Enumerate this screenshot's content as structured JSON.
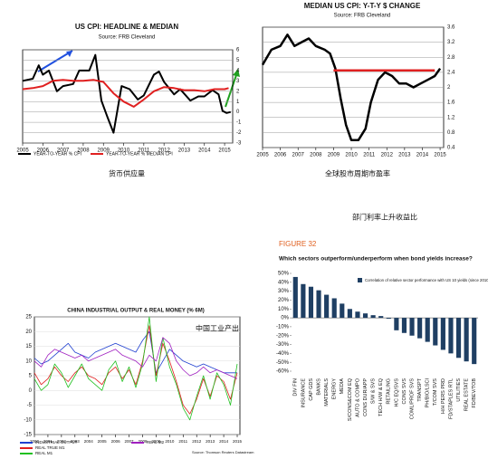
{
  "chart_data": [
    {
      "type": "line",
      "title": "US CPI: HEADLINE & MEDIAN",
      "source": "Source: FRB Cleveland",
      "caption": "货币供应量",
      "xlim": [
        2005,
        2015.4
      ],
      "xticks": [
        2005,
        2006,
        2007,
        2008,
        2009,
        2010,
        2011,
        2012,
        2013,
        2014,
        2015
      ],
      "ylim": [
        -3,
        6
      ],
      "yticks": [
        -3,
        -2,
        -1,
        0,
        1,
        2,
        3,
        4,
        5,
        6
      ],
      "grid": true,
      "series": [
        {
          "name": "YEAR-TO-YEAR % CPI",
          "color": "#000000",
          "x": [
            2005,
            2005.5,
            2005.8,
            2006.0,
            2006.3,
            2006.7,
            2007.0,
            2007.5,
            2007.8,
            2008.3,
            2008.6,
            2008.9,
            2009.2,
            2009.5,
            2009.9,
            2010.3,
            2010.7,
            2011.0,
            2011.5,
            2011.75,
            2012.0,
            2012.5,
            2012.8,
            2013.3,
            2013.7,
            2014.0,
            2014.4,
            2014.7,
            2014.9,
            2015.1,
            2015.3
          ],
          "values": [
            3,
            3.2,
            4.5,
            3.6,
            4.0,
            2.0,
            2.5,
            2.7,
            4.0,
            4.0,
            5.5,
            1.1,
            -0.5,
            -2.0,
            2.5,
            2.2,
            1.2,
            1.6,
            3.6,
            3.9,
            2.9,
            1.7,
            2.2,
            1.1,
            1.5,
            1.5,
            2.1,
            1.7,
            0.1,
            -0.1,
            0.0
          ]
        },
        {
          "name": "YEAR-TO-YEAR % MEDIAN CPI",
          "color": "#e02020",
          "x": [
            2005,
            2005.5,
            2006,
            2006.5,
            2007,
            2007.5,
            2008,
            2008.5,
            2009,
            2009.5,
            2010,
            2010.5,
            2011,
            2011.5,
            2012,
            2012.5,
            2013,
            2013.5,
            2014,
            2014.5,
            2015,
            2015.2
          ],
          "values": [
            2.2,
            2.3,
            2.5,
            3.0,
            3.1,
            3.0,
            3.0,
            3.1,
            2.9,
            1.8,
            1.0,
            0.5,
            1.2,
            2.0,
            2.4,
            2.3,
            2.1,
            2.1,
            2.0,
            2.2,
            2.2,
            2.3
          ]
        }
      ]
    },
    {
      "type": "line",
      "title": "MEDIAN US CPI: Y-T-Y $ CHANGE",
      "source": "Source: FRB Cleveland",
      "caption": "全球股市周期市盈率",
      "xlim": [
        2005,
        2015.2
      ],
      "xticks": [
        2005,
        2006,
        2007,
        2008,
        2009,
        2010,
        2011,
        2012,
        2013,
        2014,
        2015
      ],
      "ylim": [
        0.4,
        3.6
      ],
      "yticks": [
        0.4,
        0.8,
        1.2,
        1.6,
        2.0,
        2.4,
        2.8,
        3.2,
        3.6
      ],
      "grid": true,
      "series": [
        {
          "color": "#000000",
          "x": [
            2005,
            2005.5,
            2006,
            2006.4,
            2006.8,
            2007.2,
            2007.6,
            2008,
            2008.5,
            2008.8,
            2009.1,
            2009.4,
            2009.7,
            2010.0,
            2010.4,
            2010.8,
            2011.1,
            2011.5,
            2011.9,
            2012.3,
            2012.7,
            2013.1,
            2013.5,
            2013.9,
            2014.3,
            2014.7,
            2015
          ],
          "values": [
            2.6,
            3.0,
            3.1,
            3.4,
            3.1,
            3.2,
            3.3,
            3.1,
            3.0,
            2.9,
            2.5,
            1.7,
            1.0,
            0.6,
            0.6,
            0.9,
            1.6,
            2.2,
            2.4,
            2.3,
            2.1,
            2.1,
            2.0,
            2.1,
            2.2,
            2.3,
            2.5
          ]
        },
        {
          "color": "#e02020",
          "x": [
            2009,
            2014.7
          ],
          "values": [
            2.45,
            2.45
          ]
        }
      ]
    },
    {
      "type": "line",
      "title": "CHINA INDUSTRIAL OUTPUT & REAL MONEY (% 6M)",
      "source": "Source: Thomson Reuters Datastream",
      "caption": "中国工业产出",
      "xlim": [
        2000,
        2015.2
      ],
      "xticks": [
        2000,
        2001,
        2002,
        2003,
        2004,
        2005,
        2006,
        2007,
        2008,
        2009,
        2010,
        2011,
        2012,
        2013,
        2014,
        2015
      ],
      "ylim": [
        -15,
        25
      ],
      "yticks": [
        -15,
        -10,
        -5,
        0,
        5,
        10,
        15,
        20,
        25
      ],
      "grid": true,
      "x": [
        2000,
        2000.5,
        2001,
        2001.5,
        2002,
        2002.5,
        2003,
        2003.5,
        2004,
        2004.5,
        2005,
        2005.5,
        2006,
        2006.5,
        2007,
        2007.5,
        2008,
        2008.5,
        2009,
        2009.5,
        2010,
        2010.5,
        2011,
        2011.5,
        2012,
        2012.5,
        2013,
        2013.5,
        2014,
        2014.5,
        2015
      ],
      "series": [
        {
          "name": "INDUSTRIAL OUTPUT",
          "color": "#2040d0",
          "values": [
            11,
            9,
            10,
            12,
            14,
            16,
            13,
            12,
            11,
            13,
            14,
            15,
            16,
            15,
            14,
            13,
            17,
            20,
            6,
            10,
            14,
            12,
            10,
            9,
            8,
            9,
            8,
            7,
            6,
            6,
            6
          ]
        },
        {
          "name": "REAL TRUE M1",
          "color": "#e02020",
          "values": [
            6,
            2,
            4,
            8,
            5,
            3,
            6,
            8,
            5,
            4,
            2,
            6,
            8,
            4,
            7,
            2,
            10,
            22,
            5,
            16,
            10,
            3,
            -5,
            -8,
            -3,
            4,
            -2,
            5,
            3,
            -3,
            6
          ]
        },
        {
          "name": "REAL M1",
          "color": "#20c020",
          "values": [
            4,
            0,
            2,
            9,
            6,
            1,
            5,
            9,
            4,
            2,
            0,
            7,
            10,
            3,
            8,
            1,
            9,
            25,
            3,
            18,
            8,
            2,
            -6,
            -10,
            -2,
            5,
            -3,
            6,
            2,
            -5,
            9
          ]
        },
        {
          "name": "REAL M2",
          "color": "#a020c0",
          "values": [
            10,
            8,
            12,
            14,
            13,
            12,
            11,
            12,
            10,
            11,
            12,
            13,
            14,
            12,
            11,
            10,
            8,
            12,
            10,
            18,
            16,
            10,
            7,
            5,
            6,
            8,
            6,
            7,
            6,
            5,
            4
          ]
        }
      ]
    },
    {
      "type": "bar",
      "caption": "部门利率上升收益比",
      "figure_label": "FIGURE 32",
      "subtitle": "Which sectors outperform/underperform when bond yields increase?",
      "legend_label": "Correlation of relative sector performance with US 10 yields (since 2010)",
      "color": "#1f3f63",
      "ylim": [
        -60,
        50
      ],
      "yticks": [
        {
          "value": 50,
          "label": "50%"
        },
        {
          "value": 40,
          "label": "40%"
        },
        {
          "value": 30,
          "label": "30%"
        },
        {
          "value": 20,
          "label": "20%"
        },
        {
          "value": 10,
          "label": "10%"
        },
        {
          "value": 0,
          "label": "0%"
        },
        {
          "value": -10,
          "label": "-10%"
        },
        {
          "value": -20,
          "label": "-20%"
        },
        {
          "value": -30,
          "label": "-30%"
        },
        {
          "value": -40,
          "label": "-40%"
        },
        {
          "value": -50,
          "label": "-50%"
        },
        {
          "value": -60,
          "label": "-60%"
        }
      ],
      "categories": [
        "DIV FIN",
        "INSURANCE",
        "CAP GDS",
        "BANKS",
        "MATERIALS",
        "ENERGY",
        "MEDIA",
        "S/CONS&COM EQ",
        "AUTO & COMPO",
        "CONS DUR/APP",
        "S/W & SVS",
        "TECH H/W & EQ",
        "RETAILING",
        "H/C EQ/SVS",
        "CONS SVS",
        "COML/PROF SVS",
        "TRANSPT",
        "PH/BIO/LSCI",
        "T/COM SVS",
        "H/H PERS PRD",
        "FD/STAPLES RTL",
        "UTILITIES",
        "REAL ESTATE",
        "FD/BEV/TOB"
      ],
      "values": [
        46,
        38,
        35,
        31,
        26,
        22,
        16,
        10,
        7,
        5,
        3,
        2,
        -1,
        -14,
        -17,
        -20,
        -23,
        -27,
        -31,
        -36,
        -40,
        -45,
        -49,
        -52
      ]
    }
  ]
}
